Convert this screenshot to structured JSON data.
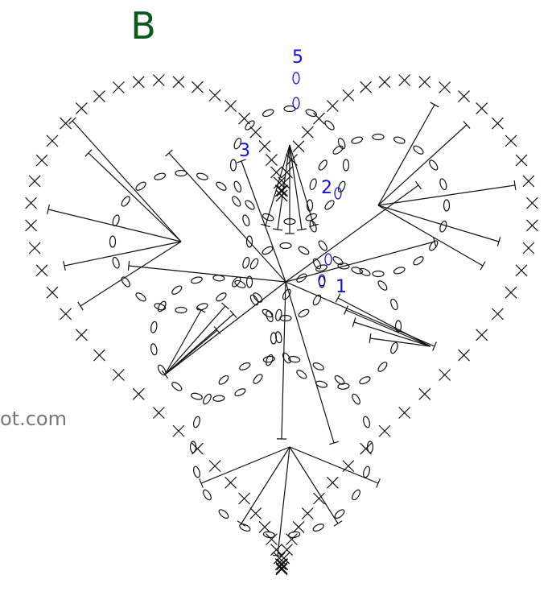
{
  "header": {
    "title": "B"
  },
  "labels": [
    "5",
    "3",
    "2",
    "1"
  ],
  "watermark": "ot.com"
}
